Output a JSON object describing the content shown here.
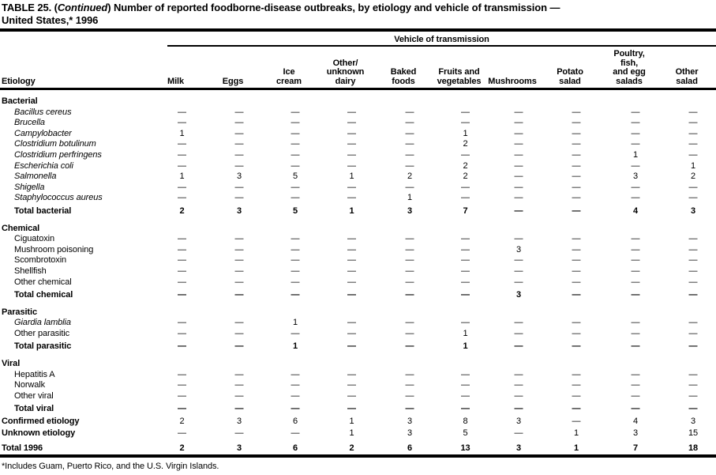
{
  "title": {
    "part1": "TABLE 25. (",
    "continued": "Continued",
    "part2": ") Number of reported foodborne-disease outbreaks, by etiology and vehicle of transmission —",
    "line2": "United States,* 1996"
  },
  "table": {
    "spanner": "Vehicle of transmission",
    "etiology_header": "Etiology",
    "columns": [
      "Milk",
      "Eggs",
      "Ice\ncream",
      "Other/\nunknown\ndairy",
      "Baked\nfoods",
      "Fruits and\nvegetables",
      "Mushrooms",
      "Potato\nsalad",
      "Poultry,\nfish,\nand egg\nsalads",
      "Other\nsalad"
    ],
    "sections": [
      {
        "name": "Bacterial",
        "rows": [
          {
            "label": "Bacillus cereus",
            "style": "italic",
            "values": [
              "—",
              "—",
              "—",
              "—",
              "—",
              "—",
              "—",
              "—",
              "—",
              "—"
            ]
          },
          {
            "label": "Brucella",
            "style": "italic",
            "values": [
              "—",
              "—",
              "—",
              "—",
              "—",
              "—",
              "—",
              "—",
              "—",
              "—"
            ]
          },
          {
            "label": "Campylobacter",
            "style": "italic",
            "values": [
              "1",
              "—",
              "—",
              "—",
              "—",
              "1",
              "—",
              "—",
              "—",
              "—"
            ]
          },
          {
            "label": "Clostridium botulinum",
            "style": "italic",
            "values": [
              "—",
              "—",
              "—",
              "—",
              "—",
              "2",
              "—",
              "—",
              "—",
              "—"
            ]
          },
          {
            "label": "Clostridium perfringens",
            "style": "italic",
            "values": [
              "—",
              "—",
              "—",
              "—",
              "—",
              "—",
              "—",
              "—",
              "1",
              "—"
            ]
          },
          {
            "label": "Escherichia coli",
            "style": "italic",
            "values": [
              "—",
              "—",
              "—",
              "—",
              "—",
              "2",
              "—",
              "—",
              "—",
              "1"
            ]
          },
          {
            "label": "Salmonella",
            "style": "italic",
            "values": [
              "1",
              "3",
              "5",
              "1",
              "2",
              "2",
              "—",
              "—",
              "3",
              "2"
            ]
          },
          {
            "label": "Shigella",
            "style": "italic",
            "values": [
              "—",
              "—",
              "—",
              "—",
              "—",
              "—",
              "—",
              "—",
              "—",
              "—"
            ]
          },
          {
            "label": "Staphylococcus aureus",
            "style": "italic",
            "values": [
              "—",
              "—",
              "—",
              "—",
              "1",
              "—",
              "—",
              "—",
              "—",
              "—"
            ]
          },
          {
            "label": "Total bacterial",
            "style": "total",
            "values": [
              "2",
              "3",
              "5",
              "1",
              "3",
              "7",
              "—",
              "—",
              "4",
              "3"
            ]
          }
        ]
      },
      {
        "name": "Chemical",
        "rows": [
          {
            "label": "Ciguatoxin",
            "style": "plain",
            "values": [
              "—",
              "—",
              "—",
              "—",
              "—",
              "—",
              "—",
              "—",
              "—",
              "—"
            ]
          },
          {
            "label": "Mushroom poisoning",
            "style": "plain",
            "values": [
              "—",
              "—",
              "—",
              "—",
              "—",
              "—",
              "3",
              "—",
              "—",
              "—"
            ]
          },
          {
            "label": "Scombrotoxin",
            "style": "plain",
            "values": [
              "—",
              "—",
              "—",
              "—",
              "—",
              "—",
              "—",
              "—",
              "—",
              "—"
            ]
          },
          {
            "label": "Shellfish",
            "style": "plain",
            "values": [
              "—",
              "—",
              "—",
              "—",
              "—",
              "—",
              "—",
              "—",
              "—",
              "—"
            ]
          },
          {
            "label": "Other chemical",
            "style": "plain",
            "values": [
              "—",
              "—",
              "—",
              "—",
              "—",
              "—",
              "—",
              "—",
              "—",
              "—"
            ]
          },
          {
            "label": "Total chemical",
            "style": "total",
            "values": [
              "—",
              "—",
              "—",
              "—",
              "—",
              "—",
              "3",
              "—",
              "—",
              "—"
            ]
          }
        ]
      },
      {
        "name": "Parasitic",
        "rows": [
          {
            "label": "Giardia lamblia",
            "style": "italic",
            "values": [
              "—",
              "—",
              "1",
              "—",
              "—",
              "—",
              "—",
              "—",
              "—",
              "—"
            ]
          },
          {
            "label": "Other parasitic",
            "style": "plain",
            "values": [
              "—",
              "—",
              "—",
              "—",
              "—",
              "1",
              "—",
              "—",
              "—",
              "—"
            ]
          },
          {
            "label": "Total parasitic",
            "style": "total",
            "values": [
              "—",
              "—",
              "1",
              "—",
              "—",
              "1",
              "—",
              "—",
              "—",
              "—"
            ]
          }
        ]
      },
      {
        "name": "Viral",
        "rows": [
          {
            "label": "Hepatitis A",
            "style": "plain",
            "values": [
              "—",
              "—",
              "—",
              "—",
              "—",
              "—",
              "—",
              "—",
              "—",
              "—"
            ]
          },
          {
            "label": "Norwalk",
            "style": "plain",
            "values": [
              "—",
              "—",
              "—",
              "—",
              "—",
              "—",
              "—",
              "—",
              "—",
              "—"
            ]
          },
          {
            "label": "Other viral",
            "style": "plain",
            "values": [
              "—",
              "—",
              "—",
              "—",
              "—",
              "—",
              "—",
              "—",
              "—",
              "—"
            ]
          },
          {
            "label": "Total viral",
            "style": "total",
            "values": [
              "—",
              "—",
              "—",
              "—",
              "—",
              "—",
              "—",
              "—",
              "—",
              "—"
            ]
          }
        ]
      }
    ],
    "summary_rows": [
      {
        "label": "Confirmed etiology",
        "style": "summary",
        "values": [
          "2",
          "3",
          "6",
          "1",
          "3",
          "8",
          "3",
          "—",
          "4",
          "3"
        ]
      },
      {
        "label": "Unknown etiology",
        "style": "summary",
        "values": [
          "—",
          "—",
          "—",
          "1",
          "3",
          "5",
          "—",
          "1",
          "3",
          "15"
        ]
      },
      {
        "label": "Total 1996",
        "style": "grand-total",
        "values": [
          "2",
          "3",
          "6",
          "2",
          "6",
          "13",
          "3",
          "1",
          "7",
          "18"
        ]
      }
    ]
  },
  "footnote": "*Includes Guam, Puerto Rico, and the U.S. Virgin Islands."
}
